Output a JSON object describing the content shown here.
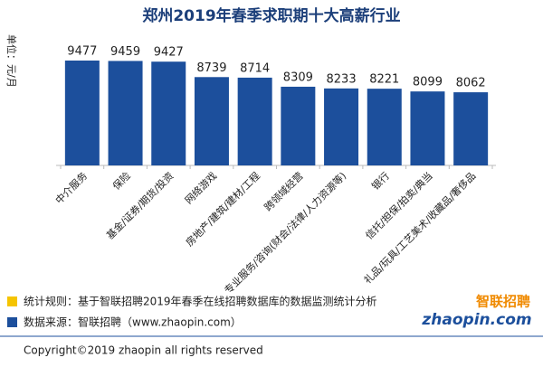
{
  "chart_data": {
    "type": "bar",
    "title": "郑州2019年春季求职期十大高薪行业",
    "y_label": "单位：元/月",
    "categories": [
      "中介服务",
      "保险",
      "基金/证券/期货/投资",
      "网络游戏",
      "房地产/建筑/建材/工程",
      "跨领域经营",
      "专业服务/咨询(财会/法律/人力资源等)",
      "银行",
      "信托/担保/拍卖/典当",
      "礼品/玩具/工艺美术/收藏品/奢侈品"
    ],
    "values": [
      9477,
      9459,
      9427,
      8739,
      8714,
      8309,
      8233,
      8221,
      8099,
      8062
    ],
    "color": "#1c4f9c",
    "ylim": [
      4800,
      10000
    ]
  },
  "footer": {
    "rule": "统计规则：基于智联招聘2019年春季在线招聘数据库的数据监测统计分析",
    "source": "数据来源：智联招聘（www.zhaopin.com）",
    "copyright": "Copyright©2019 zhaopin all rights reserved",
    "logo_cn": "智联招聘",
    "logo_en": "zhaopin.com"
  }
}
